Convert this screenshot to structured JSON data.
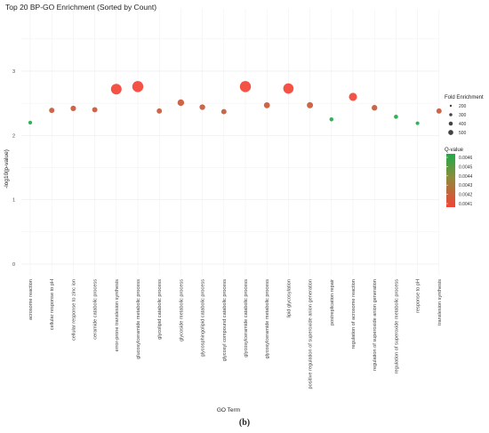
{
  "panel_label": "(b)",
  "chart_data": {
    "type": "scatter",
    "title": "Top 20 BP-GO Enrichment (Sorted by Count)",
    "xlabel": "GO Term",
    "ylabel": "-log10(p-value)",
    "ylim": [
      0,
      3.2
    ],
    "y_ticks": [
      0,
      1,
      2,
      3
    ],
    "grid": true,
    "legend_position": "right",
    "colors": {
      "low_q": "#f44336",
      "high_q": "#1fab4a"
    },
    "size_legend": {
      "title": "Fold Enrichment",
      "values": [
        200,
        300,
        400,
        500
      ]
    },
    "color_legend": {
      "title": "Q-value",
      "values": [
        "0.0046",
        "0.0045",
        "0.0044",
        "0.0043",
        "0.0042",
        "0.0041"
      ]
    },
    "points": [
      {
        "term": "acrosome reaction",
        "y": 2.2,
        "fold": 150,
        "q": 0.0046
      },
      {
        "term": "cellular response to pH",
        "y": 2.39,
        "fold": 230,
        "q": 0.0042
      },
      {
        "term": "cellular response to zinc ion",
        "y": 2.42,
        "fold": 240,
        "q": 0.0042
      },
      {
        "term": "ceramide catabolic process",
        "y": 2.4,
        "fold": 230,
        "q": 0.0042
      },
      {
        "term": "error-prone translesion synthesis",
        "y": 2.72,
        "fold": 520,
        "q": 0.0041
      },
      {
        "term": "glucosylceramide metabolic process",
        "y": 2.76,
        "fold": 540,
        "q": 0.0041
      },
      {
        "term": "glycolipid catabolic process",
        "y": 2.38,
        "fold": 230,
        "q": 0.0042
      },
      {
        "term": "glycoside metabolic process",
        "y": 2.51,
        "fold": 300,
        "q": 0.0042
      },
      {
        "term": "glycosphingolipid catabolic process",
        "y": 2.44,
        "fold": 250,
        "q": 0.0042
      },
      {
        "term": "glycosyl compound catabolic process",
        "y": 2.37,
        "fold": 230,
        "q": 0.0042
      },
      {
        "term": "glycosylceramide catabolic process",
        "y": 2.76,
        "fold": 540,
        "q": 0.0041
      },
      {
        "term": "glycosylceramide metabolic process",
        "y": 2.47,
        "fold": 270,
        "q": 0.0042
      },
      {
        "term": "lipid glycosylation",
        "y": 2.73,
        "fold": 500,
        "q": 0.0041
      },
      {
        "term": "positive regulation of superoxide anion generation",
        "y": 2.47,
        "fold": 280,
        "q": 0.0042
      },
      {
        "term": "postreplication repair",
        "y": 2.25,
        "fold": 160,
        "q": 0.0046
      },
      {
        "term": "regulation of acrosome reaction",
        "y": 2.6,
        "fold": 380,
        "q": 0.0041
      },
      {
        "term": "regulation of superoxide anion generation",
        "y": 2.43,
        "fold": 250,
        "q": 0.0042
      },
      {
        "term": "regulation of superoxide metabolic process",
        "y": 2.29,
        "fold": 170,
        "q": 0.0046
      },
      {
        "term": "response to pH",
        "y": 2.19,
        "fold": 140,
        "q": 0.0046
      },
      {
        "term": "translesion synthesis",
        "y": 2.38,
        "fold": 230,
        "q": 0.0042
      }
    ]
  }
}
